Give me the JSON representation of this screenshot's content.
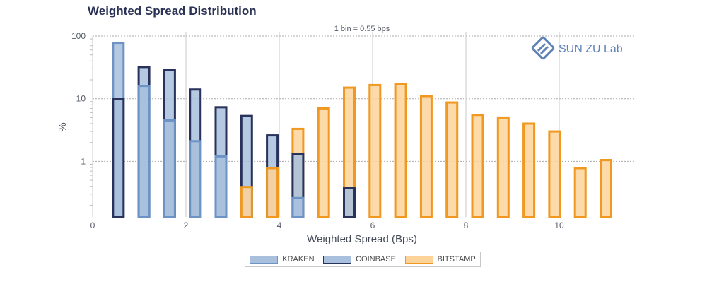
{
  "chart_data": {
    "type": "bar",
    "title": "Weighted Spread Distribution",
    "annotation": "1 bin = 0.55 bps",
    "xlabel": "Weighted Spread (Bps)",
    "ylabel": "%",
    "yscale": "log",
    "xlim": [
      0,
      11.5
    ],
    "ylim": [
      0.13,
      100
    ],
    "x_ticks": [
      0,
      2,
      4,
      6,
      8,
      10
    ],
    "y_ticks": [
      1,
      10,
      100
    ],
    "grid": true,
    "legend_position": "bottom",
    "watermark": "SUN ZU Lab",
    "series": [
      {
        "name": "KRAKEN",
        "color": "#a8bfdd",
        "edge_color": "#6d93c4",
        "points": [
          {
            "x": 0.55,
            "y": 78
          },
          {
            "x": 1.1,
            "y": 16
          },
          {
            "x": 1.65,
            "y": 4.5
          },
          {
            "x": 2.2,
            "y": 2.1
          },
          {
            "x": 2.75,
            "y": 1.2
          },
          {
            "x": 4.4,
            "y": 0.26
          }
        ]
      },
      {
        "name": "COINBASE",
        "color": "#a8bfdd",
        "edge_color": "#28325a",
        "points": [
          {
            "x": 0.55,
            "y": 10
          },
          {
            "x": 1.1,
            "y": 32
          },
          {
            "x": 1.65,
            "y": 29
          },
          {
            "x": 2.2,
            "y": 14
          },
          {
            "x": 2.75,
            "y": 7.3
          },
          {
            "x": 3.3,
            "y": 5.3
          },
          {
            "x": 3.85,
            "y": 2.6
          },
          {
            "x": 4.4,
            "y": 1.3
          },
          {
            "x": 5.5,
            "y": 0.38
          }
        ]
      },
      {
        "name": "BITSTAMP",
        "color": "#fdd39a",
        "edge_color": "#f0981f",
        "points": [
          {
            "x": 3.3,
            "y": 0.39
          },
          {
            "x": 3.85,
            "y": 0.78
          },
          {
            "x": 4.4,
            "y": 3.3
          },
          {
            "x": 4.95,
            "y": 7
          },
          {
            "x": 5.5,
            "y": 15
          },
          {
            "x": 6.05,
            "y": 16.5
          },
          {
            "x": 6.6,
            "y": 17
          },
          {
            "x": 7.15,
            "y": 11
          },
          {
            "x": 7.7,
            "y": 8.7
          },
          {
            "x": 8.25,
            "y": 5.5
          },
          {
            "x": 8.8,
            "y": 5
          },
          {
            "x": 9.35,
            "y": 4
          },
          {
            "x": 9.9,
            "y": 3
          },
          {
            "x": 10.45,
            "y": 0.78
          },
          {
            "x": 11.0,
            "y": 1.05
          }
        ]
      }
    ]
  }
}
